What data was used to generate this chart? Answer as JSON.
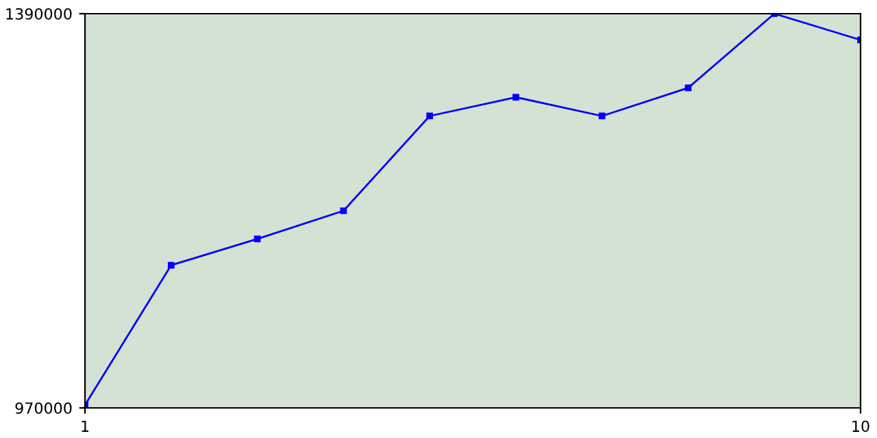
{
  "chart_data": {
    "type": "line",
    "x": [
      1,
      2,
      3,
      4,
      5,
      6,
      7,
      8,
      9,
      10
    ],
    "series": [
      {
        "color": "#0000ff",
        "values": [
          973000,
          1122000,
          1150000,
          1180000,
          1281000,
          1301000,
          1281000,
          1311000,
          1390000,
          1362000
        ]
      }
    ],
    "xlim": [
      1,
      10
    ],
    "xticks": [
      1,
      10
    ],
    "ylim": [
      970000,
      1390000
    ],
    "yticks": [
      970000,
      1390000
    ],
    "grid": false,
    "legend": false,
    "marker": "square",
    "line_style": "solid"
  }
}
